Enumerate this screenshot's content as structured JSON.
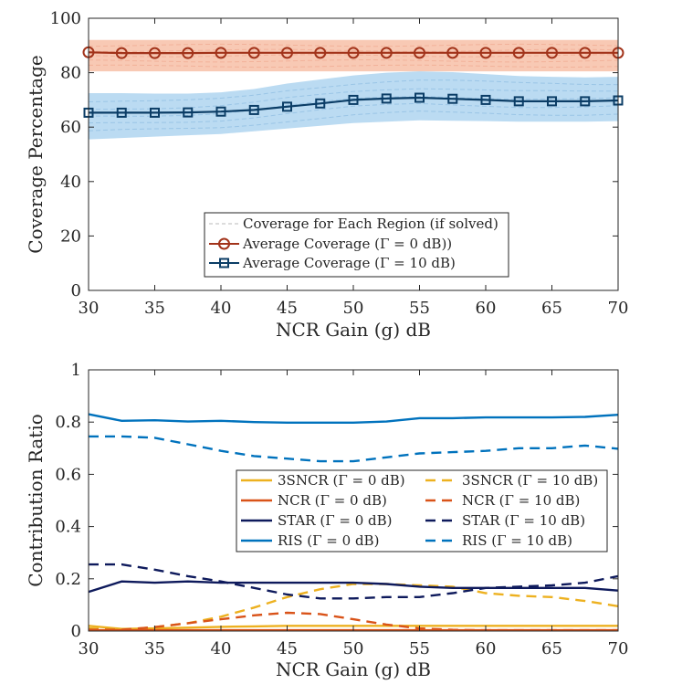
{
  "chart_data": [
    {
      "type": "line",
      "xlabel": "NCR Gain (g) dB",
      "ylabel": "Coverage Percentage",
      "xlim": [
        30,
        70
      ],
      "ylim": [
        0,
        100
      ],
      "xticks": [
        "30",
        "35",
        "40",
        "45",
        "50",
        "55",
        "60",
        "65",
        "70"
      ],
      "yticks": [
        "0",
        "20",
        "40",
        "60",
        "80",
        "100"
      ],
      "x": [
        30,
        32.5,
        35,
        37.5,
        40,
        42.5,
        45,
        47.5,
        50,
        52.5,
        55,
        57.5,
        60,
        62.5,
        65,
        67.5,
        70
      ],
      "series": [
        {
          "name": "Average Coverage (Γ = 0 dB))",
          "color": "#a2331a",
          "band_color": "#f4a582",
          "marker": "circle",
          "values": [
            87.5,
            87.2,
            87.2,
            87.2,
            87.3,
            87.3,
            87.3,
            87.3,
            87.3,
            87.3,
            87.3,
            87.3,
            87.3,
            87.3,
            87.3,
            87.3,
            87.3
          ],
          "band_lower": [
            80.5,
            80.5,
            80.5,
            80.5,
            80.5,
            80.5,
            80.5,
            80.5,
            80.5,
            80.5,
            80.5,
            80.5,
            80.5,
            80.5,
            80.5,
            80.5,
            80.5
          ],
          "band_upper": [
            92.0,
            92.0,
            92.0,
            92.0,
            92.0,
            92.0,
            92.0,
            92.0,
            92.0,
            92.0,
            92.0,
            92.0,
            92.0,
            92.0,
            92.0,
            92.0,
            92.0
          ]
        },
        {
          "name": "Average Coverage (Γ = 10 dB)",
          "color": "#0b3d66",
          "band_color": "#8ec3ea",
          "marker": "square",
          "values": [
            65.3,
            65.3,
            65.3,
            65.4,
            65.7,
            66.3,
            67.5,
            68.7,
            70.0,
            70.5,
            70.8,
            70.4,
            70.0,
            69.5,
            69.5,
            69.5,
            69.8
          ],
          "band_lower": [
            55.5,
            56.0,
            56.5,
            57.0,
            57.5,
            58.5,
            59.5,
            60.5,
            61.5,
            62.0,
            62.5,
            62.3,
            62.2,
            62.0,
            62.0,
            62.0,
            62.2
          ],
          "band_upper": [
            72.5,
            72.5,
            72.3,
            72.3,
            72.8,
            74.0,
            76.0,
            77.5,
            79.0,
            80.0,
            80.5,
            80.2,
            79.5,
            78.8,
            78.5,
            78.3,
            78.5
          ]
        }
      ],
      "legend": {
        "placement": "lower-center",
        "entries": [
          "Coverage for Each Region (if solved)",
          "Average Coverage (Γ = 0 dB))",
          "Average Coverage (Γ = 10 dB)"
        ]
      }
    },
    {
      "type": "line",
      "xlabel": "NCR Gain (g) dB",
      "ylabel": "Contribution Ratio",
      "xlim": [
        30,
        70
      ],
      "ylim": [
        0,
        1
      ],
      "xticks": [
        "30",
        "35",
        "40",
        "45",
        "50",
        "55",
        "60",
        "65",
        "70"
      ],
      "yticks": [
        "0",
        "0.2",
        "0.4",
        "0.6",
        "0.8",
        "1"
      ],
      "x": [
        30,
        32.5,
        35,
        37.5,
        40,
        42.5,
        45,
        47.5,
        50,
        52.5,
        55,
        57.5,
        60,
        62.5,
        65,
        67.5,
        70
      ],
      "series": [
        {
          "name": "3SNCR (Γ = 0 dB)",
          "color": "#edb120",
          "dash": "solid",
          "values": [
            0.02,
            0.008,
            0.01,
            0.013,
            0.016,
            0.018,
            0.02,
            0.02,
            0.02,
            0.02,
            0.02,
            0.02,
            0.02,
            0.02,
            0.02,
            0.02,
            0.02
          ]
        },
        {
          "name": "3SNCR (Γ = 10 dB)",
          "color": "#edb120",
          "dash": "dashed",
          "values": [
            0.01,
            0.005,
            0.015,
            0.03,
            0.055,
            0.09,
            0.13,
            0.16,
            0.18,
            0.18,
            0.175,
            0.17,
            0.145,
            0.135,
            0.13,
            0.115,
            0.095
          ]
        },
        {
          "name": "NCR (Γ = 0 dB)",
          "color": "#d95319",
          "dash": "solid",
          "values": [
            0.003,
            0.003,
            0.003,
            0.003,
            0.003,
            0.003,
            0.003,
            0.003,
            0.003,
            0.003,
            0.003,
            0.003,
            0.003,
            0.003,
            0.003,
            0.003,
            0.003
          ]
        },
        {
          "name": "NCR (Γ = 10 dB)",
          "color": "#d95319",
          "dash": "dashed",
          "values": [
            0.005,
            0.005,
            0.015,
            0.03,
            0.045,
            0.06,
            0.07,
            0.065,
            0.045,
            0.025,
            0.01,
            0.005,
            0.003,
            0.003,
            0.003,
            0.003,
            0.003
          ]
        },
        {
          "name": "STAR (Γ = 0 dB)",
          "color": "#0e1a5c",
          "dash": "solid",
          "values": [
            0.15,
            0.19,
            0.185,
            0.19,
            0.185,
            0.185,
            0.185,
            0.185,
            0.185,
            0.18,
            0.17,
            0.165,
            0.165,
            0.165,
            0.165,
            0.165,
            0.155
          ]
        },
        {
          "name": "STAR (Γ = 10 dB)",
          "color": "#0e1a5c",
          "dash": "dashed",
          "values": [
            0.255,
            0.255,
            0.235,
            0.21,
            0.19,
            0.165,
            0.14,
            0.125,
            0.125,
            0.13,
            0.13,
            0.145,
            0.165,
            0.17,
            0.175,
            0.185,
            0.21
          ]
        },
        {
          "name": "RIS (Γ = 0 dB)",
          "color": "#0072bd",
          "dash": "solid",
          "values": [
            0.83,
            0.805,
            0.807,
            0.802,
            0.805,
            0.8,
            0.798,
            0.798,
            0.798,
            0.802,
            0.815,
            0.815,
            0.818,
            0.818,
            0.818,
            0.82,
            0.828
          ]
        },
        {
          "name": "RIS (Γ = 10 dB)",
          "color": "#0072bd",
          "dash": "dashed",
          "values": [
            0.745,
            0.745,
            0.74,
            0.715,
            0.69,
            0.67,
            0.66,
            0.65,
            0.65,
            0.665,
            0.68,
            0.685,
            0.69,
            0.7,
            0.7,
            0.71,
            0.698
          ]
        }
      ],
      "legend": {
        "placement": "center-right",
        "columns": 2,
        "entries": [
          "3SNCR (Γ = 0 dB)",
          "3SNCR (Γ = 10 dB)",
          "NCR (Γ = 0 dB)",
          "NCR (Γ = 10 dB)",
          "STAR (Γ = 0 dB)",
          "STAR (Γ = 10 dB)",
          "RIS (Γ = 0 dB)",
          "RIS (Γ = 10 dB)"
        ]
      }
    }
  ]
}
